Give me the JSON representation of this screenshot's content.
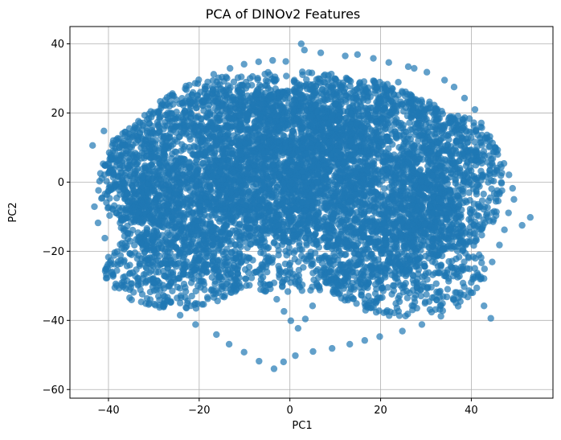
{
  "chart_data": {
    "type": "scatter",
    "title": "PCA of DINOv2 Features",
    "xlabel": "PC1",
    "ylabel": "PC2",
    "xlim": [
      -48.5,
      58
    ],
    "ylim": [
      -62.5,
      45
    ],
    "xticks": [
      -40,
      -20,
      0,
      20,
      40
    ],
    "xtick_labels": [
      "−40",
      "−20",
      "0",
      "20",
      "40"
    ],
    "yticks": [
      -60,
      -40,
      -20,
      0,
      20,
      40
    ],
    "ytick_labels": [
      "−60",
      "−40",
      "−20",
      "0",
      "20",
      "40"
    ],
    "grid": true,
    "legend": "none",
    "marker_color": "#1f77b4",
    "marker_alpha": 0.7,
    "series": [
      {
        "x": [
          2.5,
          3.2,
          6.8,
          12.2,
          14.9,
          18.4,
          21.8,
          26.1,
          27.4,
          30.2,
          34.1,
          36.2,
          38.5,
          40.8,
          42.2,
          44.1,
          45.8,
          47.2,
          48.3,
          49.1,
          49.4,
          48.2,
          47.3,
          46.2,
          44.6,
          42.8,
          40.3,
          37.1,
          33.3,
          29.1,
          24.8,
          19.8,
          16.5,
          13.2,
          9.3,
          5.1,
          1.2,
          -1.4,
          -3.5,
          -6.8,
          -10.1,
          -13.4,
          -16.2,
          -20.8,
          -24.2,
          -27.9,
          -30.8,
          -33.6,
          -35.9,
          -38.1,
          -40.8,
          -42.3,
          -43.1,
          -42.2,
          -40.9,
          -39.2,
          -37.0,
          -34.2,
          -31.1,
          -28.4,
          -25.6,
          -22.9,
          -20.1,
          -16.8,
          -13.2,
          -10.1,
          -6.9,
          -3.8,
          -0.9,
          53.0,
          51.2,
          -41.0,
          -43.5,
          -40.8,
          -38.5,
          -35.2,
          -32.1,
          -30.0,
          -28.5,
          -27.0,
          -25.3,
          -23.4,
          -21.8,
          -20.2,
          -18.6,
          -17.0,
          -15.5,
          -14.0,
          -12.4,
          -10.8,
          -9.1,
          -7.6,
          -6.0,
          -4.4,
          -2.9,
          -1.3,
          0.2,
          1.8,
          3.4,
          5.0,
          6.6,
          8.2,
          9.7,
          11.3,
          12.9,
          14.4,
          16.0,
          17.6,
          19.2,
          20.7,
          22.3,
          23.9,
          25.5,
          27.0,
          28.6,
          30.2,
          31.8,
          33.3,
          34.9,
          36.5,
          38.1,
          39.6,
          41.2,
          42.8,
          44.3,
          -6.9,
          -3.8,
          -0.9,
          2.1,
          4.7,
          7.8,
          9.9,
          13.2,
          15.8,
          18.3,
          21.7,
          25.2,
          28.9,
          32.5,
          35.9,
          38.7,
          41.3
        ],
        "y": [
          40.0,
          38.2,
          37.4,
          36.5,
          36.9,
          35.8,
          34.6,
          33.4,
          32.9,
          31.8,
          29.5,
          27.5,
          24.3,
          21.0,
          17.1,
          13.2,
          9.3,
          5.4,
          2.1,
          -1.8,
          -5.0,
          -8.9,
          -13.8,
          -18.2,
          -23.1,
          -27.9,
          -32.0,
          -35.9,
          -38.8,
          -41.2,
          -43.1,
          -44.7,
          -45.8,
          -46.9,
          -48.1,
          -49.0,
          -50.2,
          -52.0,
          -54.0,
          -51.8,
          -49.2,
          -46.9,
          -44.1,
          -41.2,
          -38.5,
          -35.2,
          -31.8,
          -27.9,
          -24.3,
          -20.1,
          -16.2,
          -11.8,
          -7.1,
          -2.4,
          2.1,
          6.8,
          10.9,
          14.8,
          18.4,
          21.5,
          24.9,
          27.8,
          29.6,
          31.2,
          32.9,
          34.1,
          34.8,
          35.2,
          34.9,
          -10.2,
          -12.5,
          14.8,
          10.6,
          4.8,
          -0.5,
          -4.3,
          8.4,
          14.2,
          18.9,
          22.6,
          12.3,
          5.1,
          -8.8,
          -14.2,
          -19.1,
          -22.9,
          17.8,
          10.4,
          2.7,
          -5.6,
          -11.2,
          -17.5,
          -24.0,
          -29.7,
          -33.9,
          -37.4,
          -40.1,
          -42.3,
          -39.6,
          -35.8,
          -31.2,
          -26.4,
          -20.7,
          -15.1,
          -9.3,
          -3.7,
          1.9,
          7.4,
          12.8,
          18.2,
          23.6,
          28.9,
          26.1,
          20.8,
          15.3,
          9.6,
          3.8,
          -2.0,
          -7.9,
          -13.6,
          -19.5,
          -25.1,
          -30.6,
          -35.8,
          -39.4,
          -2.4,
          4.9,
          11.3,
          16.8,
          21.4,
          26.2,
          29.9,
          24.4,
          19.1,
          13.6,
          8.0,
          2.3,
          -3.4,
          -9.2,
          -14.9,
          -20.6,
          -26.3
        ]
      }
    ],
    "density_clouds": [
      {
        "cx": -10,
        "cy": 5,
        "rx": 30,
        "ry": 22
      },
      {
        "cx": 10,
        "cy": 5,
        "rx": 32,
        "ry": 24
      },
      {
        "cx": 0,
        "cy": -10,
        "rx": 38,
        "ry": 22
      },
      {
        "cx": 25,
        "cy": -25,
        "rx": 18,
        "ry": 14
      },
      {
        "cx": -25,
        "cy": -25,
        "rx": 16,
        "ry": 12
      },
      {
        "cx": 0,
        "cy": 20,
        "rx": 30,
        "ry": 12
      },
      {
        "cx": 35,
        "cy": 0,
        "rx": 12,
        "ry": 20
      },
      {
        "cx": -33,
        "cy": 0,
        "rx": 9,
        "ry": 16
      }
    ]
  }
}
